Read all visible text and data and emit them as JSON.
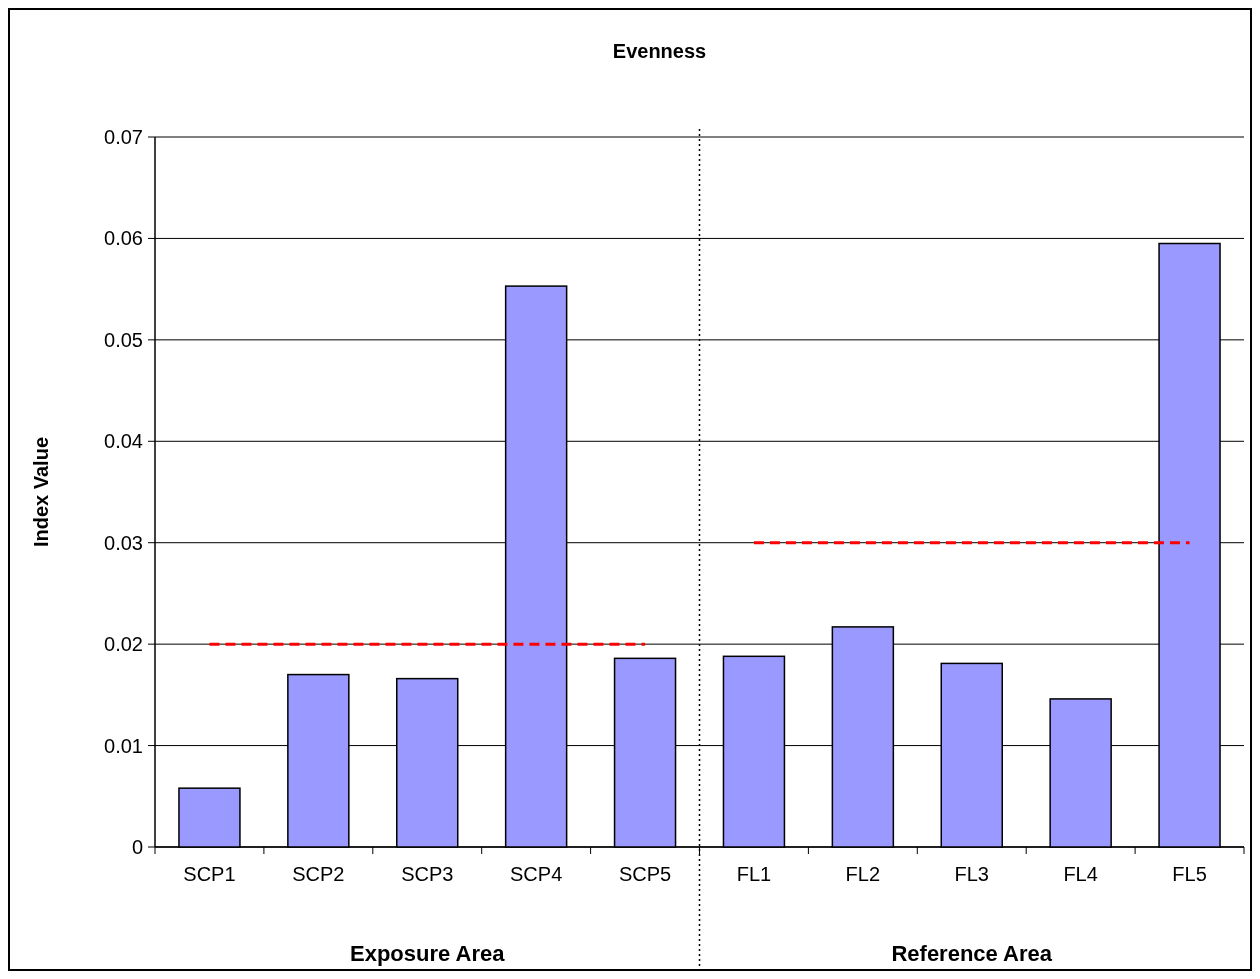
{
  "chart_data": {
    "type": "bar",
    "title": "Evenness",
    "ylabel": "Index Value",
    "categories": [
      "SCP1",
      "SCP2",
      "SCP3",
      "SCP4",
      "SCP5",
      "FL1",
      "FL2",
      "FL3",
      "FL4",
      "FL5"
    ],
    "series": [
      {
        "color": "#9999ff",
        "values": [
          0.0058,
          0.017,
          0.0166,
          0.0553,
          0.0186,
          0.0188,
          0.0217,
          0.0181,
          0.0146,
          0.0595
        ]
      },
      {
        "type": "line",
        "color": "#ff0000",
        "line_style": "dashed",
        "x": [
          "SCP1",
          "SCP5"
        ],
        "values": [
          0.02,
          0.02
        ]
      },
      {
        "type": "line",
        "color": "#ff0000",
        "line_style": "dashed",
        "x": [
          "FL1",
          "FL5"
        ],
        "values": [
          0.03,
          0.03
        ]
      }
    ],
    "annotations": [
      "Exposure Area",
      "Reference Area"
    ],
    "ylim": [
      0,
      0.07
    ],
    "yticks": [
      0,
      0.01,
      0.02,
      0.03,
      0.04,
      0.05,
      0.06,
      0.07
    ],
    "grid": "y"
  }
}
